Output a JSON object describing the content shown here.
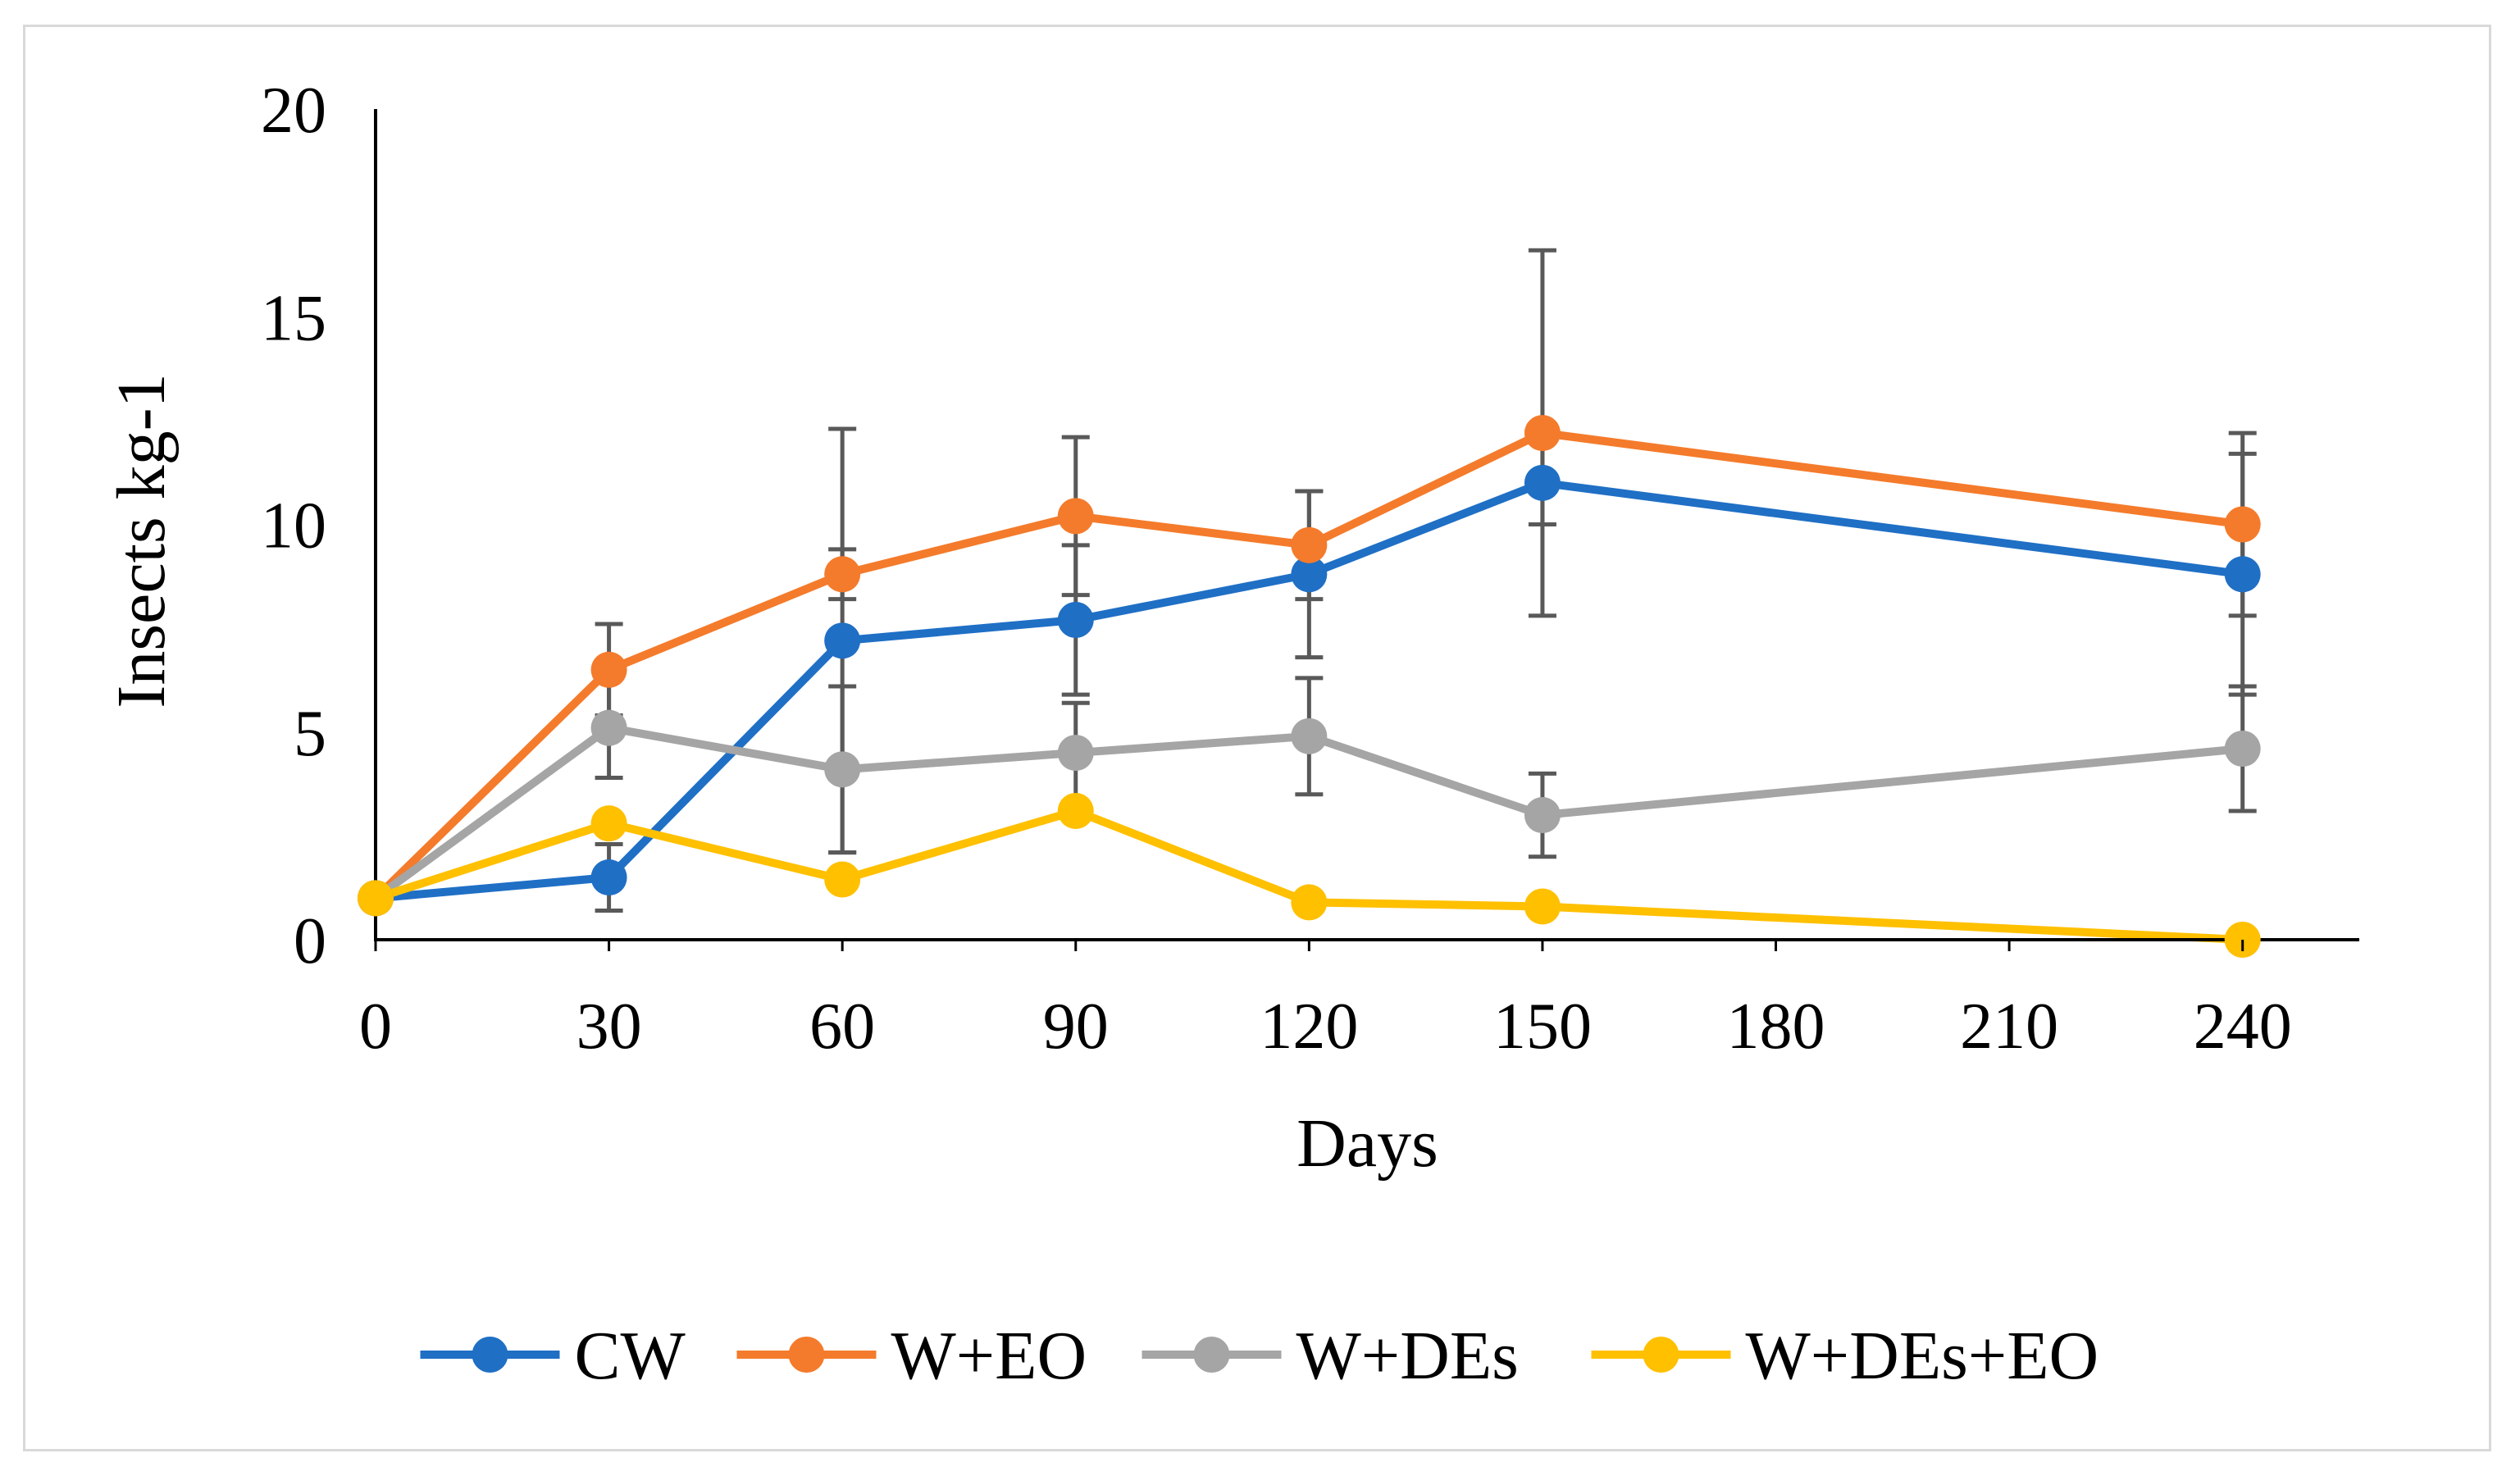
{
  "chart_data": {
    "type": "line",
    "title": "",
    "xlabel": "Days",
    "ylabel": "Insects kg-1",
    "ylim": [
      0,
      20
    ],
    "yticks": [
      "0",
      "5",
      "10",
      "15",
      "20"
    ],
    "categories": [
      "0",
      "30",
      "60",
      "90",
      "120",
      "150",
      "180",
      "210",
      "240"
    ],
    "grid": false,
    "legend_position": "bottom",
    "series": [
      {
        "name": "CW",
        "color": "#1f6fc5",
        "points": [
          {
            "x": "0",
            "y": 1.0,
            "err": 0
          },
          {
            "x": "30",
            "y": 1.5,
            "err": 0.8
          },
          {
            "x": "60",
            "y": 7.2,
            "err": 5.1
          },
          {
            "x": "90",
            "y": 7.7,
            "err": 1.8
          },
          {
            "x": "120",
            "y": 8.8,
            "err": 2.0
          },
          {
            "x": "150",
            "y": 11.0,
            "err": 1.0
          },
          {
            "x": "240",
            "y": 8.8,
            "err": 2.9
          }
        ]
      },
      {
        "name": "W+EO",
        "color": "#f47b2b",
        "points": [
          {
            "x": "0",
            "y": 1.0,
            "err": 0
          },
          {
            "x": "30",
            "y": 6.5,
            "err": 1.1
          },
          {
            "x": "60",
            "y": 8.8,
            "err": 0.6
          },
          {
            "x": "90",
            "y": 10.2,
            "err": 1.9
          },
          {
            "x": "120",
            "y": 9.5,
            "err": 1.3
          },
          {
            "x": "150",
            "y": 12.2,
            "err": 4.4
          },
          {
            "x": "240",
            "y": 10.0,
            "err": 2.2
          }
        ]
      },
      {
        "name": "W+DEs",
        "color": "#a5a5a5",
        "points": [
          {
            "x": "0",
            "y": 1.0,
            "err": 0
          },
          {
            "x": "30",
            "y": 5.1,
            "err": 1.2
          },
          {
            "x": "60",
            "y": 4.1,
            "err": 2.0
          },
          {
            "x": "90",
            "y": 4.5,
            "err": 1.2
          },
          {
            "x": "120",
            "y": 4.9,
            "err": 1.4
          },
          {
            "x": "150",
            "y": 3.0,
            "err": 1.0
          },
          {
            "x": "240",
            "y": 4.6,
            "err": 1.5
          }
        ]
      },
      {
        "name": "W+DEs+EO",
        "color": "#ffc000",
        "points": [
          {
            "x": "0",
            "y": 1.0,
            "err": 0
          },
          {
            "x": "30",
            "y": 2.8,
            "err": 0
          },
          {
            "x": "60",
            "y": 1.45,
            "err": 0
          },
          {
            "x": "90",
            "y": 3.1,
            "err": 0
          },
          {
            "x": "120",
            "y": 0.9,
            "err": 0
          },
          {
            "x": "150",
            "y": 0.8,
            "err": 0
          },
          {
            "x": "240",
            "y": 0.0,
            "err": 0
          }
        ]
      }
    ]
  }
}
